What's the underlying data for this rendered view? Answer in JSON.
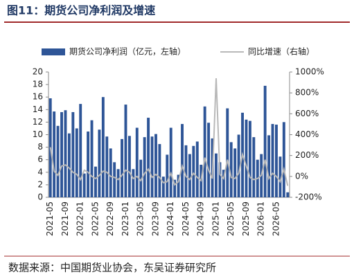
{
  "chart_data": {
    "type": "bar-line",
    "title": "图11：期货公司净利润及增速",
    "source": "数据来源：中国期货业协会，东吴证券研究所",
    "categories": [
      "2021-05",
      null,
      null,
      null,
      "2021-09",
      null,
      null,
      null,
      "2022-01",
      null,
      null,
      null,
      "2022-05",
      null,
      null,
      null,
      "2022-09",
      null,
      null,
      null,
      "2023-01",
      null,
      null,
      null,
      "2023-05",
      null,
      null,
      null,
      "2023-09",
      null,
      null,
      null,
      "2024-01",
      null,
      null,
      null,
      "2024-05",
      null,
      null,
      null,
      "2024-09",
      null,
      null,
      null,
      "2025-01",
      null,
      null,
      null,
      "2025-05",
      null,
      null,
      null,
      "2025-09",
      null,
      null,
      null,
      "2026-01",
      null,
      null,
      null,
      "2026-05",
      null,
      null,
      null
    ],
    "series": [
      {
        "name": "期货公司净利润（亿元，左轴）",
        "color": "#2e5597",
        "kind": "bar",
        "values": [
          15.8,
          13.7,
          11.4,
          13.6,
          13.9,
          10.2,
          13.6,
          11.0,
          14.9,
          3.8,
          10.5,
          12.3,
          4.9,
          10.8,
          16.0,
          9.7,
          7.8,
          5.6,
          4.5,
          9.3,
          14.8,
          9.8,
          4.5,
          11.1,
          6.0,
          9.6,
          12.7,
          9.7,
          10.1,
          8.5,
          3.3,
          6.8,
          11.1,
          2.8,
          3.6,
          11.7,
          8.3,
          6.9,
          8.2,
          8.9,
          5.2,
          14.5,
          11.9,
          9.4,
          7.0,
          5.6,
          4.4,
          14.2,
          8.8,
          7.8,
          10.0,
          13.5,
          12.4,
          12.2,
          9.6,
          6.0,
          6.9,
          17.8,
          9.9,
          11.7,
          11.6,
          6.5,
          12.0,
          0.8
        ]
      },
      {
        "name": "同比增速（右轴）",
        "color": "#b8b8b8",
        "kind": "line",
        "axis": "y2",
        "values": [
          280,
          50,
          10,
          100,
          110,
          80,
          40,
          20,
          -30,
          60,
          40,
          0,
          -20,
          10,
          50,
          40,
          0,
          -10,
          -30,
          10,
          60,
          40,
          -20,
          0,
          -40,
          30,
          70,
          -10,
          20,
          -10,
          -60,
          -50,
          30,
          -80,
          -50,
          100,
          0,
          -30,
          30,
          -10,
          -40,
          180,
          60,
          -20,
          940,
          20,
          -20,
          160,
          -10,
          -20,
          30,
          210,
          100,
          -10,
          -30,
          -20,
          10,
          160,
          -20,
          30,
          0,
          -50,
          70,
          -90
        ]
      }
    ],
    "ylim": [
      0,
      20
    ],
    "yticks": [
      0,
      2,
      4,
      6,
      8,
      10,
      12,
      14,
      16,
      18,
      20
    ],
    "y2lim": [
      -200,
      1000
    ],
    "y2ticks": [
      {
        "value": -200,
        "label": "-200%"
      },
      {
        "value": 0,
        "label": "0%"
      },
      {
        "value": 200,
        "label": "200%"
      },
      {
        "value": 400,
        "label": "400%"
      },
      {
        "value": 600,
        "label": "600%"
      },
      {
        "value": 800,
        "label": "800%"
      },
      {
        "value": 1000,
        "label": "1000%"
      }
    ]
  }
}
